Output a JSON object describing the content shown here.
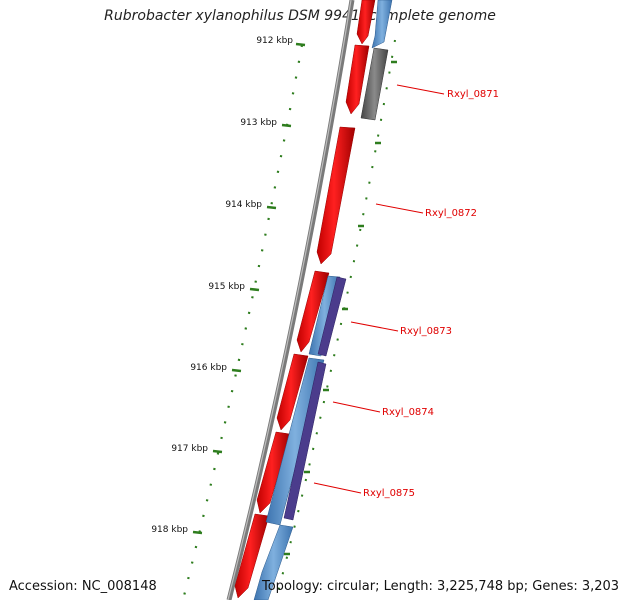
{
  "title": "Rubrobacter xylanophilus DSM 9941, complete genome",
  "accession": "Accession: NC_008148",
  "topology": "Topology: circular; Length: 3,225,748 bp; Genes: 3,203",
  "ruler": {
    "unit": "kbp",
    "ticks": [
      "912 kbp",
      "913 kbp",
      "914 kbp",
      "915 kbp",
      "916 kbp",
      "917 kbp",
      "918 kbp"
    ]
  },
  "genes": [
    "Rxyl_0871",
    "Rxyl_0872",
    "Rxyl_0873",
    "Rxyl_0874",
    "Rxyl_0875"
  ],
  "colors": {
    "backbone": "#7a7a7a",
    "gene_red": "#ff0000",
    "cds_blue": "#5b8ec4",
    "cds_purple": "#4b3c8c",
    "cds_gray": "#6f6f6f",
    "tick_green": "#2e7d1e",
    "label_red": "#e00000"
  }
}
